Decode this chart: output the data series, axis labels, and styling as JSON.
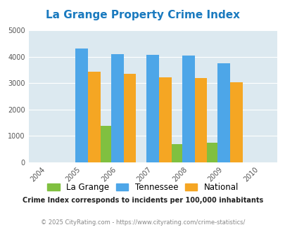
{
  "title": "La Grange Property Crime Index",
  "years": [
    2005,
    2006,
    2007,
    2008,
    2009
  ],
  "x_ticks": [
    2004,
    2005,
    2006,
    2007,
    2008,
    2009,
    2010
  ],
  "lagrange": [
    0,
    1380,
    0,
    690,
    750
  ],
  "tennessee": [
    4300,
    4100,
    4075,
    4050,
    3750
  ],
  "national": [
    3430,
    3340,
    3220,
    3200,
    3030
  ],
  "lagrange_color": "#80c040",
  "tennessee_color": "#4da6e8",
  "national_color": "#f5a623",
  "bg_color": "#dce9f0",
  "title_color": "#1a7abf",
  "ylim": [
    0,
    5000
  ],
  "yticks": [
    0,
    1000,
    2000,
    3000,
    4000,
    5000
  ],
  "bar_width": 0.35,
  "legend_labels": [
    "La Grange",
    "Tennessee",
    "National"
  ],
  "footnote1": "Crime Index corresponds to incidents per 100,000 inhabitants",
  "footnote2": "© 2025 CityRating.com - https://www.cityrating.com/crime-statistics/"
}
